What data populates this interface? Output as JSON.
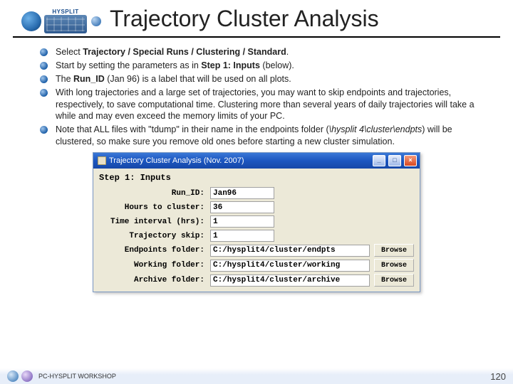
{
  "header": {
    "logo_label": "HYSPLIT",
    "title": "Trajectory Cluster Analysis"
  },
  "bullets": [
    {
      "html": "Select <b>Trajectory / Special Runs / Clustering / Standard</b>."
    },
    {
      "html": "Start by setting the parameters as in <b>Step 1: Inputs</b> (below)."
    },
    {
      "html": "The <b>Run_ID</b> (Jan 96) is a label that will be used on all plots."
    },
    {
      "html": "With long trajectories and a large set of trajectories, you may want to skip endpoints and trajectories, respectively, to save computational time. Clustering more than several years of daily trajectories will take a while and may even exceed the memory limits of your PC."
    },
    {
      "html": "Note that ALL files with \"tdump\" in their name in the endpoints folder (<i>\\hysplit 4\\cluster\\endpts</i>) will be clustered, so make sure you remove old ones before starting a new cluster simulation."
    }
  ],
  "dialog": {
    "title": "Trajectory Cluster Analysis (Nov. 2007)",
    "step_label": "Step 1: Inputs",
    "browse_label": "Browse",
    "min_btn": "_",
    "max_btn": "□",
    "close_btn": "×",
    "fields": [
      {
        "label": "Run_ID:",
        "value": "Jan96",
        "short": true,
        "browse": false
      },
      {
        "label": "Hours to cluster:",
        "value": "36",
        "short": true,
        "browse": false
      },
      {
        "label": "Time interval (hrs):",
        "value": "1",
        "short": true,
        "browse": false
      },
      {
        "label": "Trajectory skip:",
        "value": "1",
        "short": true,
        "browse": false
      },
      {
        "label": "Endpoints folder:",
        "value": "C:/hysplit4/cluster/endpts",
        "short": false,
        "browse": true
      },
      {
        "label": "Working folder:",
        "value": "C:/hysplit4/cluster/working",
        "short": false,
        "browse": true
      },
      {
        "label": "Archive folder:",
        "value": "C:/hysplit4/cluster/archive",
        "short": false,
        "browse": true
      }
    ]
  },
  "footer": {
    "text": "PC-HYSPLIT WORKSHOP",
    "page": "120"
  }
}
